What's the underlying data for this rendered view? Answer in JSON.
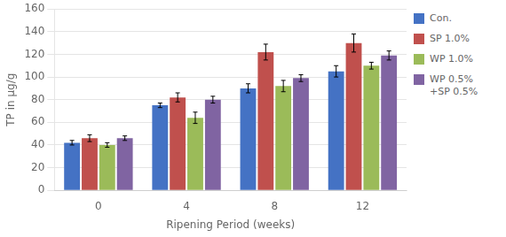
{
  "chart_data": {
    "type": "bar",
    "categories": [
      "0",
      "4",
      "8",
      "12"
    ],
    "series": [
      {
        "name": "Con.",
        "color": "#4472C4",
        "values": [
          42,
          75,
          90,
          105
        ],
        "errors": [
          2,
          2,
          4,
          5
        ]
      },
      {
        "name": "SP 1.0%",
        "color": "#C0504D",
        "values": [
          46,
          82,
          122,
          130
        ],
        "errors": [
          3,
          4,
          7,
          8
        ]
      },
      {
        "name": "WP 1.0%",
        "color": "#9BBB59",
        "values": [
          40,
          64,
          92,
          110
        ],
        "errors": [
          2,
          5,
          5,
          3
        ]
      },
      {
        "name": "WP 0.5%\n+SP 0.5%",
        "color": "#8064A2",
        "values": [
          46,
          80,
          99,
          119
        ],
        "errors": [
          2,
          3,
          3,
          4
        ]
      }
    ],
    "xlabel": "Ripening Period (weeks)",
    "ylabel": "TP in μg/g",
    "ylim": [
      0,
      160
    ],
    "yticks": [
      0,
      20,
      40,
      60,
      80,
      100,
      120,
      140,
      160
    ],
    "grid": true,
    "legend": "right"
  }
}
